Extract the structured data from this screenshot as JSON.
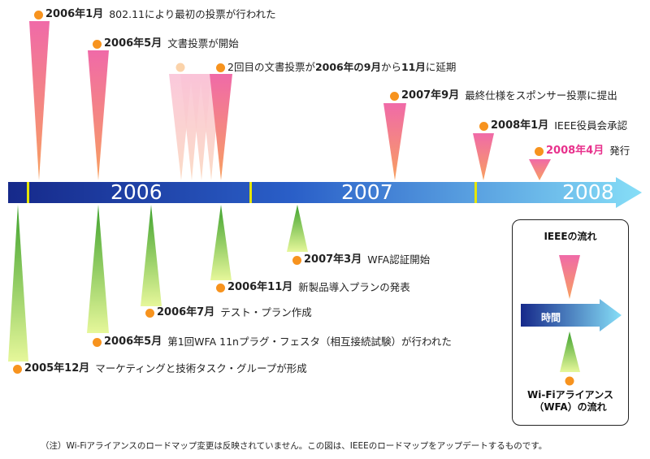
{
  "timeline": {
    "years": [
      "2006",
      "2007",
      "2008"
    ]
  },
  "ieee_events": [
    {
      "date": "2006年1月",
      "text": "802.11により最初の投票が行われた"
    },
    {
      "date": "2006年5月",
      "text": "文書投票が開始"
    },
    {
      "date": "2回目の文書投票が",
      "date2": "2006年の9月",
      "mid": "から",
      "date3": "11月",
      "text": "に延期"
    },
    {
      "date": "2007年9月",
      "text": "最終仕様をスポンサー投票に提出"
    },
    {
      "date": "2008年1月",
      "text": "IEEE役員会承認"
    },
    {
      "date": "2008年4月",
      "text": "発行"
    }
  ],
  "wfa_events": [
    {
      "date": "2005年12月",
      "text": "マーケティングと技術タスク・グループが形成"
    },
    {
      "date": "2006年5月",
      "text": "第1回WFA 11nプラグ・フェスタ（相互接続試験）が行われた"
    },
    {
      "date": "2006年7月",
      "text": "テスト・プラン作成"
    },
    {
      "date": "2006年11月",
      "text": "新製品導入プランの発表"
    },
    {
      "date": "2007年3月",
      "text": "WFA認証開始"
    }
  ],
  "legend": {
    "ieee": "IEEEの流れ",
    "time": "時間",
    "wfa_line1": "Wi-Fiアライアンス",
    "wfa_line2": "（WFA）の流れ"
  },
  "footnote": "（注）Wi-Fiアライアンスのロードマップ変更は反映されていません。この図は、IEEEのロードマップをアップデートするものです。",
  "colors": {
    "ieee_marker": "#f06aa0",
    "wfa_marker": "#6ab82e",
    "dot": "#f7931e",
    "arrow_dark": "#1a2f8f",
    "arrow_light": "#7fd8f5",
    "accent_pink": "#e8318c"
  }
}
